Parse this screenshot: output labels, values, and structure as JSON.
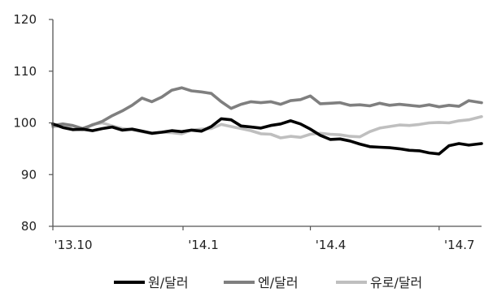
{
  "chart_data": {
    "type": "line",
    "title": "",
    "xlabel": "",
    "ylabel": "",
    "ylim": [
      80,
      120
    ],
    "yticks": [
      80,
      90,
      100,
      110,
      120
    ],
    "xticks": [
      "'13.10",
      "'14.1",
      "'14.4",
      "'14.7"
    ],
    "xlim": [
      "2013-10-01",
      "2014-07-31"
    ],
    "xtick_dates": [
      "2013-10-01",
      "2014-01-01",
      "2014-04-01",
      "2014-07-01"
    ],
    "grid": false,
    "legend_position": "bottom",
    "series": [
      {
        "name": "원/달러",
        "color": "#000000",
        "points": [
          [
            "2013-10-01",
            99.8
          ],
          [
            "2013-10-08",
            99.1
          ],
          [
            "2013-10-15",
            98.7
          ],
          [
            "2013-10-22",
            98.8
          ],
          [
            "2013-10-29",
            98.5
          ],
          [
            "2013-11-05",
            98.9
          ],
          [
            "2013-11-12",
            99.2
          ],
          [
            "2013-11-19",
            98.6
          ],
          [
            "2013-11-26",
            98.8
          ],
          [
            "2013-12-03",
            98.4
          ],
          [
            "2013-12-10",
            98.0
          ],
          [
            "2013-12-17",
            98.2
          ],
          [
            "2013-12-24",
            98.5
          ],
          [
            "2013-12-31",
            98.3
          ],
          [
            "2014-01-07",
            98.6
          ],
          [
            "2014-01-14",
            98.4
          ],
          [
            "2014-01-21",
            99.3
          ],
          [
            "2014-01-28",
            100.8
          ],
          [
            "2014-02-04",
            100.6
          ],
          [
            "2014-02-11",
            99.4
          ],
          [
            "2014-02-18",
            99.2
          ],
          [
            "2014-02-25",
            99.0
          ],
          [
            "2014-03-04",
            99.5
          ],
          [
            "2014-03-11",
            99.8
          ],
          [
            "2014-03-18",
            100.4
          ],
          [
            "2014-03-25",
            99.8
          ],
          [
            "2014-04-01",
            98.8
          ],
          [
            "2014-04-08",
            97.6
          ],
          [
            "2014-04-15",
            96.8
          ],
          [
            "2014-04-22",
            96.9
          ],
          [
            "2014-04-29",
            96.5
          ],
          [
            "2014-05-06",
            95.9
          ],
          [
            "2014-05-13",
            95.4
          ],
          [
            "2014-05-20",
            95.3
          ],
          [
            "2014-05-27",
            95.2
          ],
          [
            "2014-06-03",
            95.0
          ],
          [
            "2014-06-10",
            94.7
          ],
          [
            "2014-06-17",
            94.6
          ],
          [
            "2014-06-24",
            94.2
          ],
          [
            "2014-07-01",
            94.0
          ],
          [
            "2014-07-08",
            95.6
          ],
          [
            "2014-07-15",
            96.0
          ],
          [
            "2014-07-22",
            95.7
          ],
          [
            "2014-07-31",
            96.0
          ]
        ]
      },
      {
        "name": "엔/달러",
        "color": "#7f7f7f",
        "points": [
          [
            "2013-10-01",
            99.5
          ],
          [
            "2013-10-08",
            99.8
          ],
          [
            "2013-10-15",
            99.5
          ],
          [
            "2013-10-22",
            98.9
          ],
          [
            "2013-10-29",
            99.6
          ],
          [
            "2013-11-05",
            100.3
          ],
          [
            "2013-11-12",
            101.4
          ],
          [
            "2013-11-19",
            102.3
          ],
          [
            "2013-11-26",
            103.4
          ],
          [
            "2013-12-03",
            104.8
          ],
          [
            "2013-12-10",
            104.1
          ],
          [
            "2013-12-17",
            105.0
          ],
          [
            "2013-12-24",
            106.3
          ],
          [
            "2013-12-31",
            106.8
          ],
          [
            "2014-01-07",
            106.2
          ],
          [
            "2014-01-14",
            106.0
          ],
          [
            "2014-01-21",
            105.7
          ],
          [
            "2014-01-28",
            104.1
          ],
          [
            "2014-02-04",
            102.8
          ],
          [
            "2014-02-11",
            103.6
          ],
          [
            "2014-02-18",
            104.1
          ],
          [
            "2014-02-25",
            103.9
          ],
          [
            "2014-03-04",
            104.1
          ],
          [
            "2014-03-11",
            103.6
          ],
          [
            "2014-03-18",
            104.3
          ],
          [
            "2014-03-25",
            104.5
          ],
          [
            "2014-04-01",
            105.2
          ],
          [
            "2014-04-08",
            103.7
          ],
          [
            "2014-04-15",
            103.8
          ],
          [
            "2014-04-22",
            103.9
          ],
          [
            "2014-04-29",
            103.4
          ],
          [
            "2014-05-06",
            103.5
          ],
          [
            "2014-05-13",
            103.3
          ],
          [
            "2014-05-20",
            103.8
          ],
          [
            "2014-05-27",
            103.4
          ],
          [
            "2014-06-03",
            103.6
          ],
          [
            "2014-06-10",
            103.4
          ],
          [
            "2014-06-17",
            103.2
          ],
          [
            "2014-06-24",
            103.5
          ],
          [
            "2014-07-01",
            103.1
          ],
          [
            "2014-07-08",
            103.4
          ],
          [
            "2014-07-15",
            103.2
          ],
          [
            "2014-07-22",
            104.3
          ],
          [
            "2014-07-31",
            103.9
          ]
        ]
      },
      {
        "name": "유로/달러",
        "color": "#bfbfbf",
        "points": [
          [
            "2013-10-01",
            99.2
          ],
          [
            "2013-10-08",
            99.6
          ],
          [
            "2013-10-15",
            98.8
          ],
          [
            "2013-10-22",
            98.6
          ],
          [
            "2013-10-29",
            99.7
          ],
          [
            "2013-11-05",
            100.0
          ],
          [
            "2013-11-12",
            99.4
          ],
          [
            "2013-11-19",
            98.9
          ],
          [
            "2013-11-26",
            98.7
          ],
          [
            "2013-12-03",
            98.3
          ],
          [
            "2013-12-10",
            97.9
          ],
          [
            "2013-12-17",
            98.2
          ],
          [
            "2013-12-24",
            98.1
          ],
          [
            "2013-12-31",
            97.9
          ],
          [
            "2014-01-07",
            98.6
          ],
          [
            "2014-01-14",
            98.8
          ],
          [
            "2014-01-21",
            98.9
          ],
          [
            "2014-01-28",
            99.7
          ],
          [
            "2014-02-04",
            99.3
          ],
          [
            "2014-02-11",
            98.9
          ],
          [
            "2014-02-18",
            98.5
          ],
          [
            "2014-02-25",
            97.9
          ],
          [
            "2014-03-04",
            97.8
          ],
          [
            "2014-03-11",
            97.1
          ],
          [
            "2014-03-18",
            97.4
          ],
          [
            "2014-03-25",
            97.2
          ],
          [
            "2014-04-01",
            97.8
          ],
          [
            "2014-04-08",
            98.0
          ],
          [
            "2014-04-15",
            97.8
          ],
          [
            "2014-04-22",
            97.7
          ],
          [
            "2014-04-29",
            97.4
          ],
          [
            "2014-05-06",
            97.3
          ],
          [
            "2014-05-13",
            98.3
          ],
          [
            "2014-05-20",
            99.0
          ],
          [
            "2014-05-27",
            99.3
          ],
          [
            "2014-06-03",
            99.6
          ],
          [
            "2014-06-10",
            99.5
          ],
          [
            "2014-06-17",
            99.7
          ],
          [
            "2014-06-24",
            100.0
          ],
          [
            "2014-07-01",
            100.1
          ],
          [
            "2014-07-08",
            100.0
          ],
          [
            "2014-07-15",
            100.4
          ],
          [
            "2014-07-22",
            100.6
          ],
          [
            "2014-07-31",
            101.2
          ]
        ]
      }
    ]
  }
}
